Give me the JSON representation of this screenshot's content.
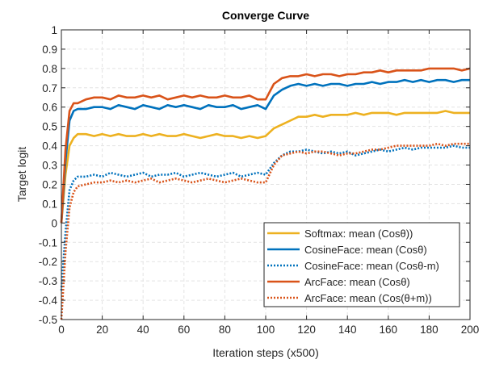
{
  "chart_data": {
    "type": "line",
    "title": "Converge Curve",
    "xlabel": "Iteration steps (x500)",
    "ylabel": "Target logit",
    "xlim": [
      0,
      200
    ],
    "ylim": [
      -0.5,
      1
    ],
    "xticks": [
      0,
      20,
      40,
      60,
      80,
      100,
      120,
      140,
      160,
      180,
      200
    ],
    "yticks": [
      -0.5,
      -0.4,
      -0.3,
      -0.2,
      -0.1,
      0,
      0.1,
      0.2,
      0.3,
      0.4,
      0.5,
      0.6,
      0.7,
      0.8,
      0.9,
      1
    ],
    "grid": true,
    "legend_position": "bottom-right",
    "x": [
      0,
      2,
      4,
      6,
      8,
      12,
      16,
      20,
      24,
      28,
      32,
      36,
      40,
      44,
      48,
      52,
      56,
      60,
      64,
      68,
      72,
      76,
      80,
      84,
      88,
      92,
      96,
      100,
      104,
      108,
      112,
      116,
      120,
      124,
      128,
      132,
      136,
      140,
      144,
      148,
      152,
      156,
      160,
      164,
      168,
      172,
      176,
      180,
      184,
      188,
      192,
      196,
      200
    ],
    "series": [
      {
        "name": "Softmax: mean (Cosθ))",
        "color": "#EDB120",
        "style": "solid",
        "values": [
          0,
          0.25,
          0.4,
          0.44,
          0.46,
          0.46,
          0.45,
          0.46,
          0.45,
          0.46,
          0.45,
          0.45,
          0.46,
          0.45,
          0.46,
          0.45,
          0.45,
          0.46,
          0.45,
          0.44,
          0.45,
          0.46,
          0.45,
          0.45,
          0.44,
          0.45,
          0.44,
          0.45,
          0.49,
          0.51,
          0.53,
          0.55,
          0.55,
          0.56,
          0.55,
          0.56,
          0.56,
          0.56,
          0.57,
          0.56,
          0.57,
          0.57,
          0.57,
          0.56,
          0.57,
          0.57,
          0.57,
          0.57,
          0.57,
          0.58,
          0.57,
          0.57,
          0.57
        ]
      },
      {
        "name": "CosineFace: mean (Cosθ)",
        "color": "#0072BD",
        "style": "solid",
        "values": [
          0,
          0.32,
          0.53,
          0.58,
          0.59,
          0.59,
          0.6,
          0.6,
          0.59,
          0.61,
          0.6,
          0.59,
          0.61,
          0.6,
          0.59,
          0.61,
          0.6,
          0.61,
          0.6,
          0.59,
          0.61,
          0.6,
          0.6,
          0.61,
          0.59,
          0.6,
          0.61,
          0.59,
          0.66,
          0.69,
          0.71,
          0.72,
          0.71,
          0.72,
          0.71,
          0.72,
          0.72,
          0.71,
          0.72,
          0.72,
          0.73,
          0.72,
          0.73,
          0.73,
          0.74,
          0.73,
          0.74,
          0.73,
          0.74,
          0.74,
          0.73,
          0.74,
          0.74
        ]
      },
      {
        "name": "CosineFace: mean (Cosθ-m)",
        "color": "#0072BD",
        "style": "dotted",
        "values": [
          -0.35,
          -0.05,
          0.17,
          0.22,
          0.24,
          0.24,
          0.25,
          0.24,
          0.26,
          0.25,
          0.24,
          0.25,
          0.26,
          0.24,
          0.25,
          0.25,
          0.26,
          0.24,
          0.25,
          0.26,
          0.25,
          0.24,
          0.25,
          0.26,
          0.24,
          0.25,
          0.26,
          0.25,
          0.31,
          0.35,
          0.37,
          0.37,
          0.38,
          0.37,
          0.36,
          0.37,
          0.36,
          0.37,
          0.35,
          0.36,
          0.37,
          0.38,
          0.37,
          0.38,
          0.39,
          0.38,
          0.39,
          0.39,
          0.39,
          0.39,
          0.4,
          0.39,
          0.39
        ]
      },
      {
        "name": "ArcFace: mean (Cosθ)",
        "color": "#D95319",
        "style": "solid",
        "values": [
          0,
          0.38,
          0.58,
          0.62,
          0.62,
          0.64,
          0.65,
          0.65,
          0.64,
          0.66,
          0.65,
          0.65,
          0.66,
          0.65,
          0.66,
          0.64,
          0.65,
          0.66,
          0.65,
          0.66,
          0.65,
          0.65,
          0.66,
          0.65,
          0.65,
          0.66,
          0.64,
          0.64,
          0.72,
          0.75,
          0.76,
          0.76,
          0.77,
          0.76,
          0.77,
          0.77,
          0.76,
          0.77,
          0.77,
          0.78,
          0.78,
          0.79,
          0.78,
          0.79,
          0.79,
          0.79,
          0.79,
          0.8,
          0.8,
          0.8,
          0.8,
          0.79,
          0.8
        ]
      },
      {
        "name": "ArcFace: mean (Cos(θ+m))",
        "color": "#D95319",
        "style": "dotted",
        "values": [
          -0.5,
          -0.15,
          0.08,
          0.16,
          0.19,
          0.2,
          0.21,
          0.21,
          0.22,
          0.21,
          0.22,
          0.21,
          0.22,
          0.23,
          0.21,
          0.22,
          0.23,
          0.22,
          0.21,
          0.22,
          0.23,
          0.22,
          0.21,
          0.22,
          0.23,
          0.22,
          0.21,
          0.21,
          0.3,
          0.35,
          0.36,
          0.37,
          0.36,
          0.37,
          0.37,
          0.36,
          0.35,
          0.36,
          0.36,
          0.37,
          0.38,
          0.38,
          0.39,
          0.4,
          0.4,
          0.4,
          0.4,
          0.4,
          0.41,
          0.4,
          0.41,
          0.41,
          0.41
        ]
      }
    ]
  }
}
